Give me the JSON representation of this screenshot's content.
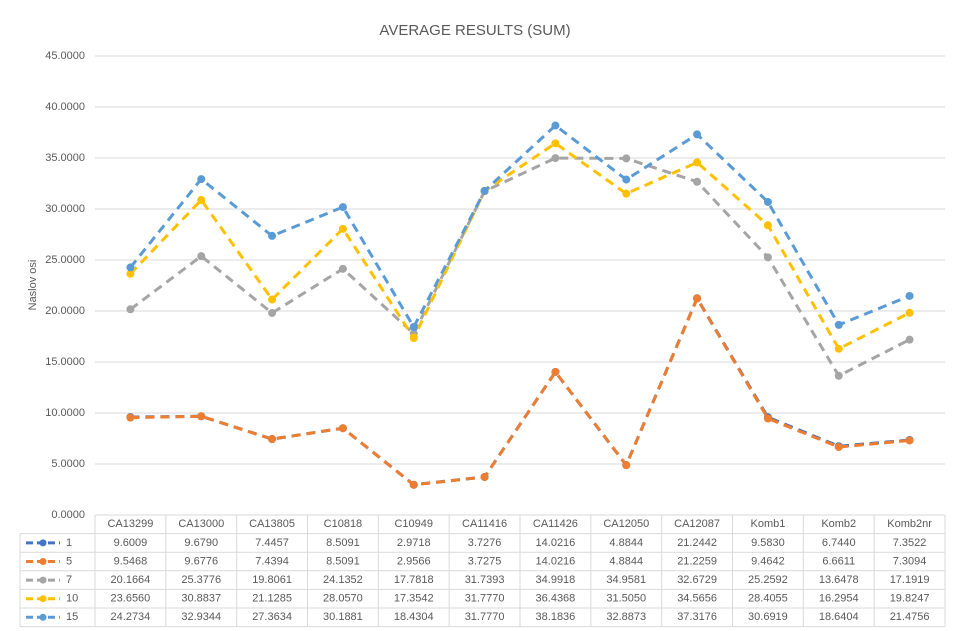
{
  "chart_data": {
    "type": "line",
    "title": "AVERAGE RESULTS (SUM)",
    "y_label": "Naslov osi",
    "categories": [
      "CA13299",
      "CA13000",
      "CA13805",
      "C10818",
      "C10949",
      "CA11416",
      "CA11426",
      "CA12050",
      "CA12087",
      "Komb1",
      "Komb2",
      "Komb2nr"
    ],
    "ylim": [
      0,
      45
    ],
    "yticks": [
      {
        "value": 0,
        "label": "0.0000"
      },
      {
        "value": 5,
        "label": "5.0000"
      },
      {
        "value": 10,
        "label": "10.0000"
      },
      {
        "value": 15,
        "label": "15.0000"
      },
      {
        "value": 20,
        "label": "20.0000"
      },
      {
        "value": 25,
        "label": "25.0000"
      },
      {
        "value": 30,
        "label": "30.0000"
      },
      {
        "value": 35,
        "label": "35.0000"
      },
      {
        "value": 40,
        "label": "40.0000"
      },
      {
        "value": 45,
        "label": "45.0000"
      }
    ],
    "grid": true,
    "series": [
      {
        "name": "1",
        "color": "#4472c4",
        "values": [
          9.6009,
          9.679,
          7.4457,
          8.5091,
          2.9718,
          3.7276,
          14.0216,
          4.8844,
          21.2442,
          9.583,
          6.744,
          7.3522
        ],
        "value_labels": [
          "9.6009",
          "9.6790",
          "7.4457",
          "8.5091",
          "2.9718",
          "3.7276",
          "14.0216",
          "4.8844",
          "21.2442",
          "9.5830",
          "6.7440",
          "7.3522"
        ]
      },
      {
        "name": "5",
        "color": "#ed7d31",
        "values": [
          9.5468,
          9.6776,
          7.4394,
          8.5091,
          2.9566,
          3.7275,
          14.0216,
          4.8844,
          21.2259,
          9.4642,
          6.6611,
          7.3094
        ],
        "value_labels": [
          "9.5468",
          "9.6776",
          "7.4394",
          "8.5091",
          "2.9566",
          "3.7275",
          "14.0216",
          "4.8844",
          "21.2259",
          "9.4642",
          "6.6611",
          "7.3094"
        ]
      },
      {
        "name": "7",
        "color": "#a5a5a5",
        "values": [
          20.1664,
          25.3776,
          19.8061,
          24.1352,
          17.7818,
          31.7393,
          34.9918,
          34.9581,
          32.6729,
          25.2592,
          13.6478,
          17.1919
        ],
        "value_labels": [
          "20.1664",
          "25.3776",
          "19.8061",
          "24.1352",
          "17.7818",
          "31.7393",
          "34.9918",
          "34.9581",
          "32.6729",
          "25.2592",
          "13.6478",
          "17.1919"
        ]
      },
      {
        "name": "10",
        "color": "#ffc000",
        "values": [
          23.656,
          30.8837,
          21.1285,
          28.057,
          17.3542,
          31.777,
          36.4368,
          31.505,
          34.5656,
          28.4055,
          16.2954,
          19.8247
        ],
        "value_labels": [
          "23.6560",
          "30.8837",
          "21.1285",
          "28.0570",
          "17.3542",
          "31.7770",
          "36.4368",
          "31.5050",
          "34.5656",
          "28.4055",
          "16.2954",
          "19.8247"
        ]
      },
      {
        "name": "15",
        "color": "#5b9bd5",
        "values": [
          24.2734,
          32.9344,
          27.3634,
          30.1881,
          18.4304,
          31.777,
          38.1836,
          32.8873,
          37.3176,
          30.6919,
          18.6404,
          21.4756
        ],
        "value_labels": [
          "24.2734",
          "32.9344",
          "27.3634",
          "30.1881",
          "18.4304",
          "31.7770",
          "38.1836",
          "32.8873",
          "37.3176",
          "30.6919",
          "18.6404",
          "21.4756"
        ]
      }
    ]
  }
}
